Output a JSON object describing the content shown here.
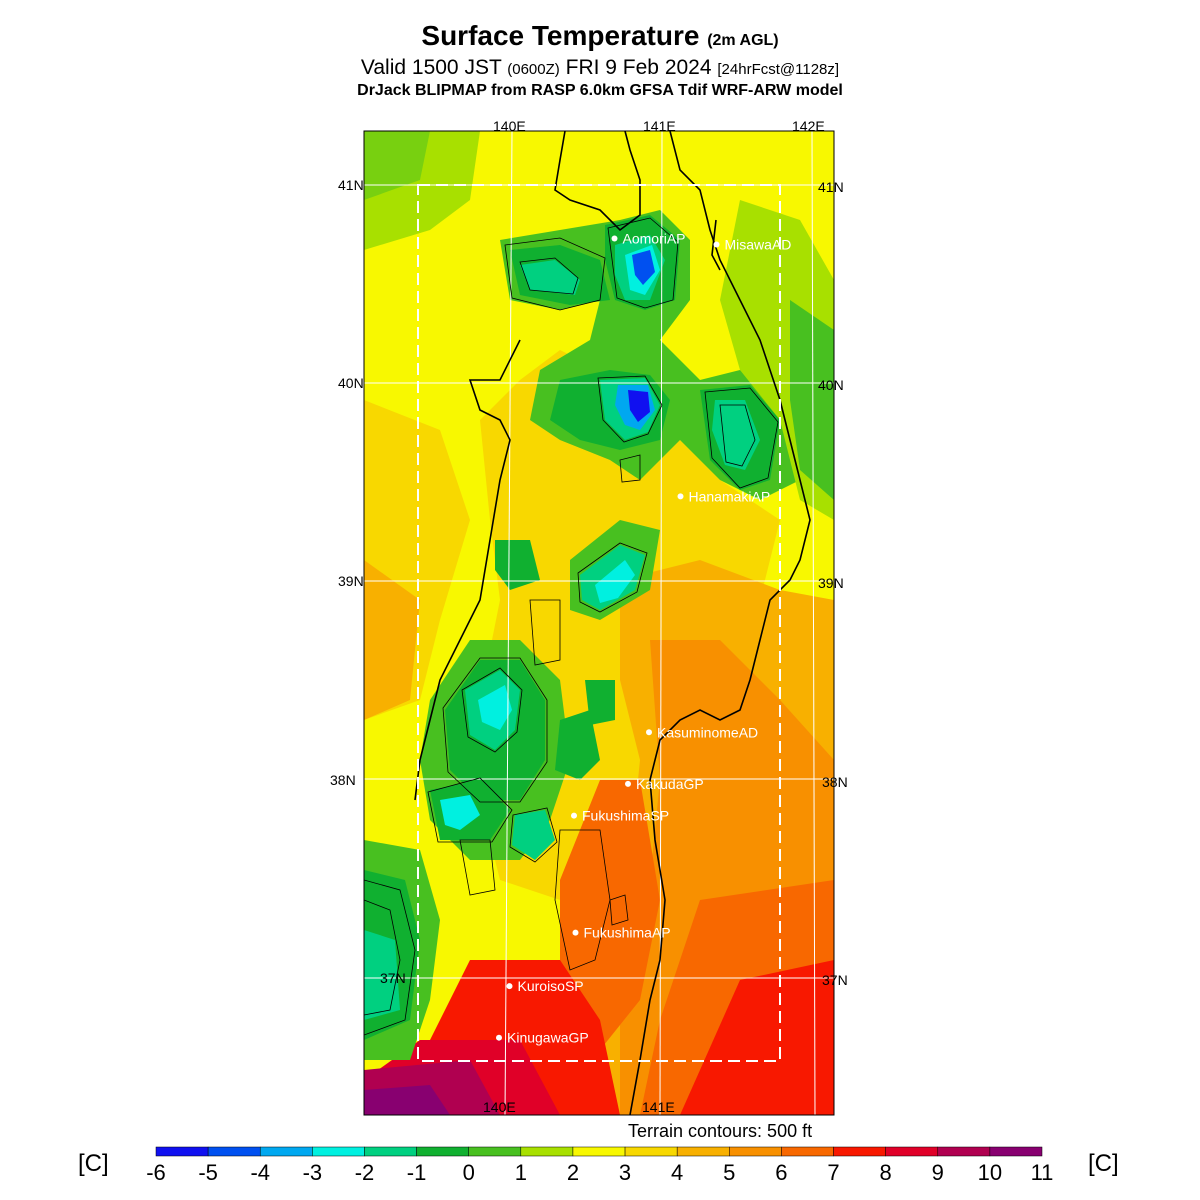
{
  "header": {
    "title": "Surface Temperature",
    "title_suffix": "(2m AGL)",
    "valid_prefix": "Valid 1500 JST",
    "valid_z": "(0600Z)",
    "valid_date": "FRI 9 Feb 2024",
    "valid_fcst": "[24hrFcst@1128z]",
    "model": "DrJack BLIPMAP from RASP 6.0km GFSA Tdif WRF-ARW model"
  },
  "map": {
    "lon_top_labels": [
      "140E",
      "141E",
      "142E"
    ],
    "lon_bottom_labels": [
      "140E",
      "141E"
    ],
    "lat_labels": [
      "41N",
      "40N",
      "39N",
      "38N",
      "37N"
    ],
    "stations": [
      {
        "name": "AomoriAP",
        "lat": 40.73,
        "lon": 140.69
      },
      {
        "name": "MisawaAD",
        "lat": 40.7,
        "lon": 141.37
      },
      {
        "name": "HanamakiAP",
        "lat": 39.43,
        "lon": 141.13
      },
      {
        "name": "KasuminomeAD",
        "lat": 38.24,
        "lon": 140.92
      },
      {
        "name": "KakudaGP",
        "lat": 37.98,
        "lon": 140.78
      },
      {
        "name": "FukushimaSP",
        "lat": 37.82,
        "lon": 140.42
      },
      {
        "name": "FukushimaAP",
        "lat": 37.23,
        "lon": 140.43
      },
      {
        "name": "KuroisoSP",
        "lat": 36.96,
        "lon": 139.99
      },
      {
        "name": "KinugawaGP",
        "lat": 36.7,
        "lon": 139.92
      }
    ],
    "terrain_note": "Terrain contours: 500 ft"
  },
  "colorbar": {
    "unit": "[C]",
    "ticks": [
      "-6",
      "-5",
      "-4",
      "-3",
      "-2",
      "-1",
      "0",
      "1",
      "2",
      "3",
      "4",
      "5",
      "6",
      "7",
      "8",
      "9",
      "10",
      "11"
    ],
    "colors": [
      "#1010f0",
      "#0050f0",
      "#00a8f0",
      "#00f0e0",
      "#00d080",
      "#10b030",
      "#48c020",
      "#a8e000",
      "#f8f800",
      "#f8d800",
      "#f8b000",
      "#f89000",
      "#f86800",
      "#f81800",
      "#e00028",
      "#b00050",
      "#880070"
    ]
  }
}
